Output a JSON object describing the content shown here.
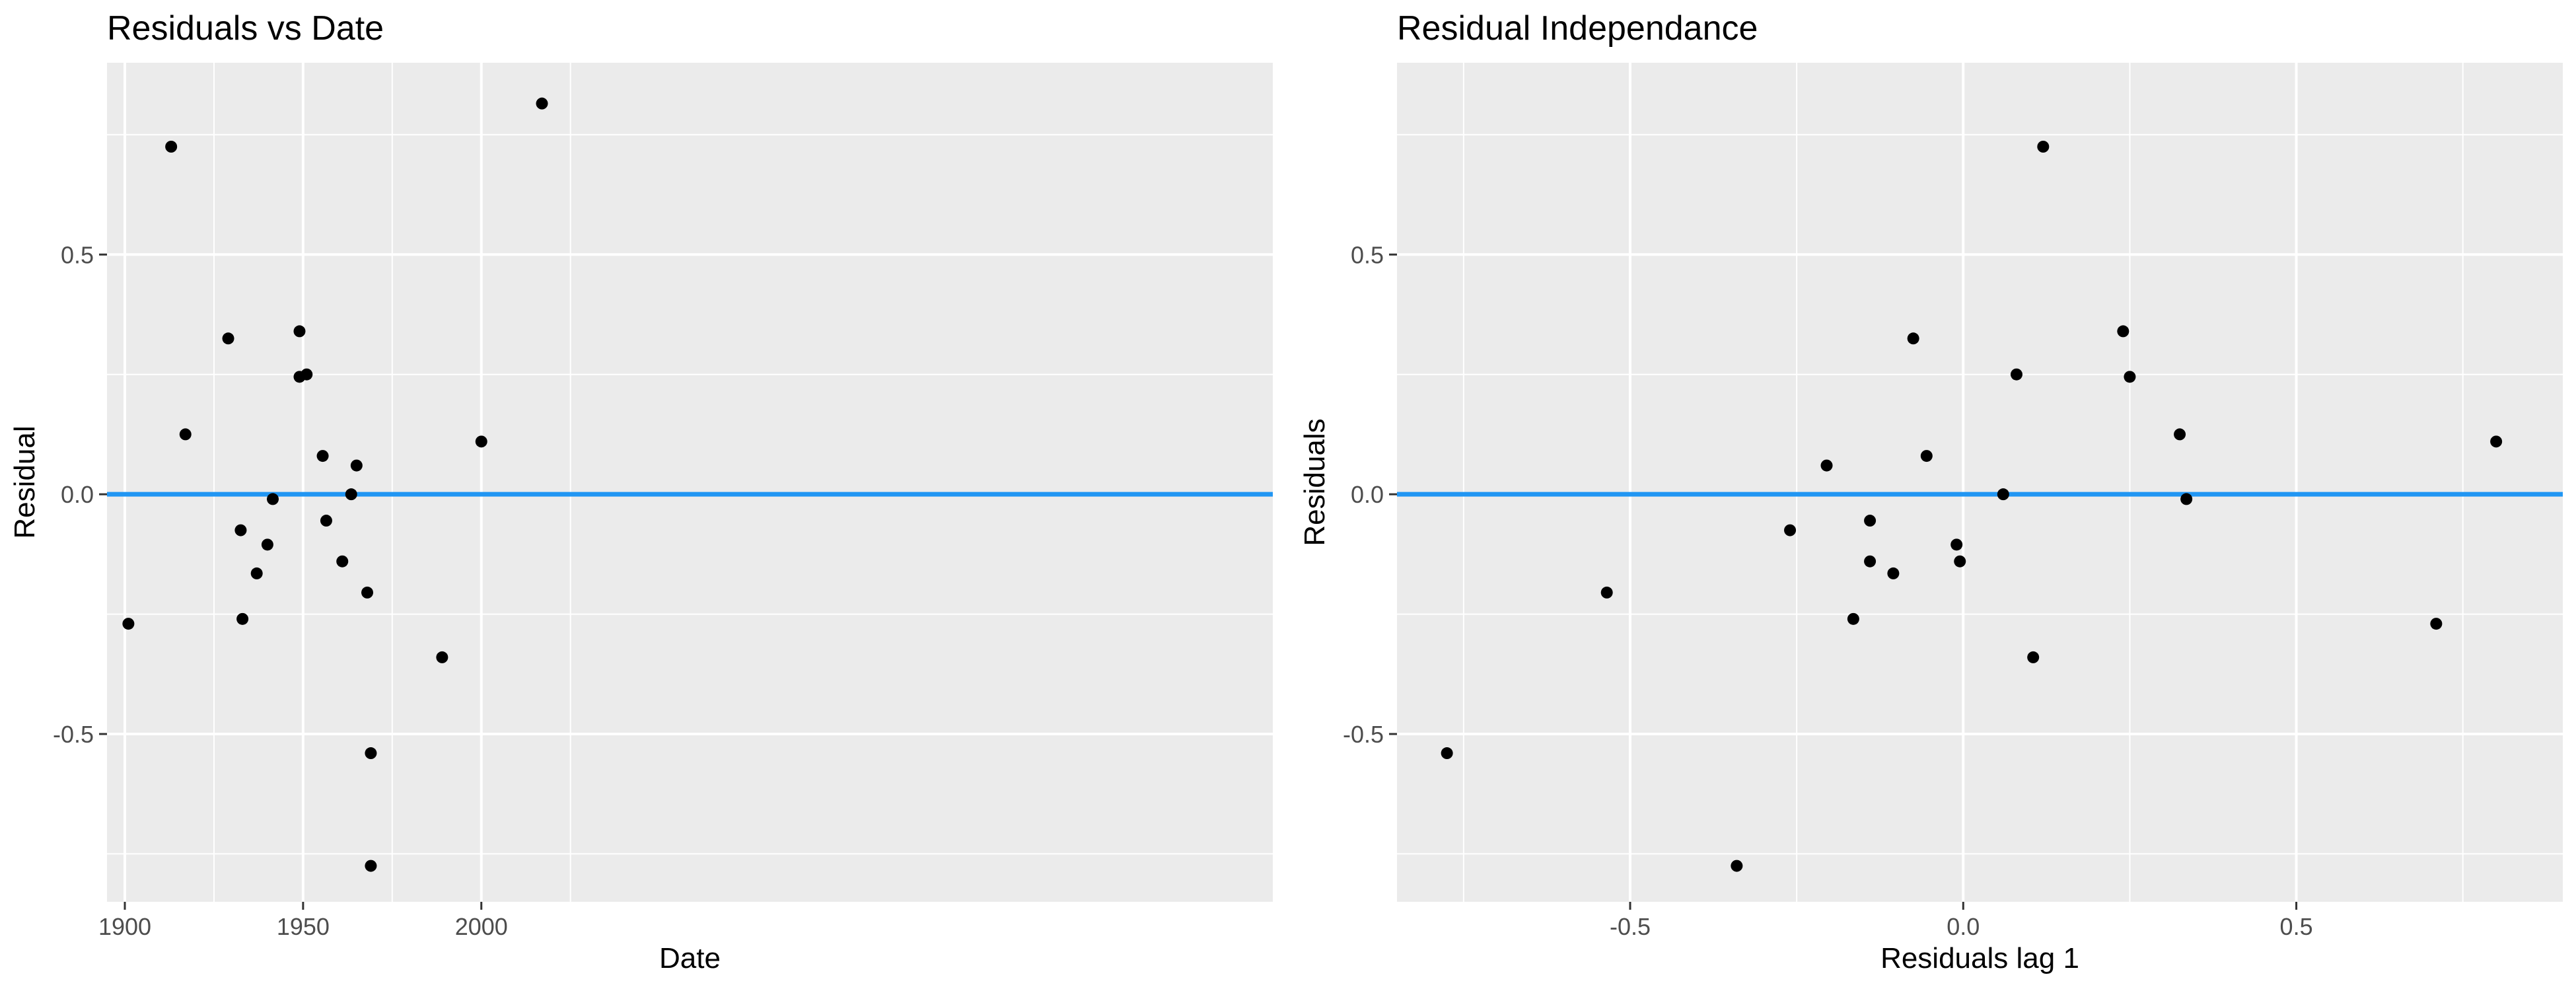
{
  "chart_data": [
    {
      "type": "scatter",
      "title": "Residuals vs Date",
      "xlabel": "Date",
      "ylabel": "Residual",
      "xlim": [
        1895,
        2222
      ],
      "ylim": [
        -0.85,
        0.9
      ],
      "xticks": [
        1900,
        1950,
        2000
      ],
      "xtick_labels": [
        "1900",
        "1950",
        "2000"
      ],
      "yticks": [
        -0.5,
        0.0,
        0.5
      ],
      "ytick_labels": [
        "-0.5",
        "0.0",
        "0.5"
      ],
      "grid": true,
      "reference_line": {
        "y": 0,
        "color": "#2196F3"
      },
      "points": [
        {
          "x": 1901,
          "y": -0.27
        },
        {
          "x": 1913,
          "y": 0.725
        },
        {
          "x": 1917,
          "y": 0.125
        },
        {
          "x": 1929,
          "y": 0.325
        },
        {
          "x": 1932.5,
          "y": -0.075
        },
        {
          "x": 1933,
          "y": -0.26
        },
        {
          "x": 1937,
          "y": -0.165
        },
        {
          "x": 1940,
          "y": -0.105
        },
        {
          "x": 1941.5,
          "y": -0.01
        },
        {
          "x": 1949,
          "y": 0.245
        },
        {
          "x": 1949,
          "y": 0.34
        },
        {
          "x": 1951,
          "y": 0.25
        },
        {
          "x": 1955.5,
          "y": 0.08
        },
        {
          "x": 1956.5,
          "y": -0.055
        },
        {
          "x": 1961,
          "y": -0.14
        },
        {
          "x": 1963.5,
          "y": 0.0
        },
        {
          "x": 1965,
          "y": 0.06
        },
        {
          "x": 1968,
          "y": -0.205
        },
        {
          "x": 1969,
          "y": -0.54
        },
        {
          "x": 1969,
          "y": -0.775
        },
        {
          "x": 1989,
          "y": -0.34
        },
        {
          "x": 2000,
          "y": 0.11
        },
        {
          "x": 2017,
          "y": 0.815
        }
      ]
    },
    {
      "type": "scatter",
      "title": "Residual Independance",
      "xlabel": "Residuals lag 1",
      "ylabel": "Residuals",
      "xlim": [
        -0.85,
        0.9
      ],
      "ylim": [
        -0.85,
        0.9
      ],
      "xticks": [
        -0.5,
        0.0,
        0.5
      ],
      "xtick_labels": [
        "-0.5",
        "0.0",
        "0.5"
      ],
      "yticks": [
        -0.5,
        0.0,
        0.5
      ],
      "ytick_labels": [
        "-0.5",
        "0.0",
        "0.5"
      ],
      "grid": true,
      "reference_line": {
        "y": 0,
        "color": "#2196F3"
      },
      "points": [
        {
          "x": -0.775,
          "y": -0.54
        },
        {
          "x": -0.535,
          "y": -0.205
        },
        {
          "x": -0.34,
          "y": -0.775
        },
        {
          "x": -0.26,
          "y": -0.075
        },
        {
          "x": -0.205,
          "y": 0.06
        },
        {
          "x": -0.165,
          "y": -0.26
        },
        {
          "x": -0.14,
          "y": -0.055
        },
        {
          "x": -0.14,
          "y": -0.14
        },
        {
          "x": -0.105,
          "y": -0.165
        },
        {
          "x": -0.075,
          "y": 0.325
        },
        {
          "x": -0.055,
          "y": 0.08
        },
        {
          "x": -0.01,
          "y": -0.105
        },
        {
          "x": -0.005,
          "y": -0.14
        },
        {
          "x": 0.06,
          "y": 0.0
        },
        {
          "x": 0.08,
          "y": 0.25
        },
        {
          "x": 0.105,
          "y": -0.34
        },
        {
          "x": 0.12,
          "y": 0.725
        },
        {
          "x": 0.24,
          "y": 0.34
        },
        {
          "x": 0.25,
          "y": 0.245
        },
        {
          "x": 0.325,
          "y": 0.125
        },
        {
          "x": 0.335,
          "y": -0.01
        },
        {
          "x": 0.71,
          "y": -0.27
        },
        {
          "x": 0.8,
          "y": 0.11
        }
      ]
    }
  ],
  "colors": {
    "panel_background": "#EBEBEB",
    "grid_line": "#FFFFFF",
    "point": "#000000",
    "reference_line": "#2196F3",
    "tick_label": "#4D4D4D",
    "text": "#000000"
  }
}
